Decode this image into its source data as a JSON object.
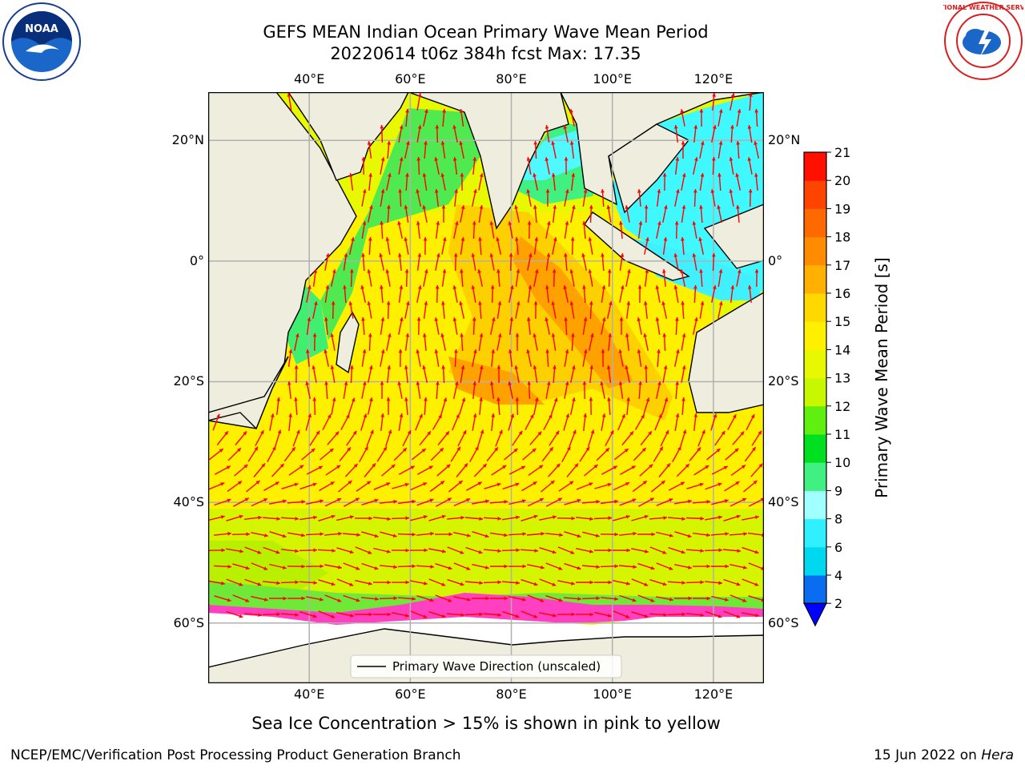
{
  "header": {
    "title_line1": "GEFS MEAN Indian Ocean Primary Wave Mean Period",
    "title_line2": "20220614 t06z 384h fcst   Max: 17.35"
  },
  "logos": {
    "left": {
      "icon": "noaa-logo-icon",
      "text": "NOAA"
    },
    "right": {
      "icon": "nws-logo-icon",
      "text": "NATIONAL WEATHER SERVICE"
    }
  },
  "map": {
    "lon_ticks": [
      "40°E",
      "60°E",
      "80°E",
      "100°E",
      "120°E"
    ],
    "lon_values": [
      40,
      60,
      80,
      100,
      120
    ],
    "lat_ticks": [
      "20°N",
      "0°",
      "20°S",
      "40°S",
      "60°S"
    ],
    "lat_values": [
      20,
      0,
      -20,
      -40,
      -60
    ],
    "extent": {
      "lon_min": 20,
      "lon_max": 130,
      "lat_min": -70,
      "lat_max": 28
    },
    "legend_label": "Primary Wave Direction (unscaled)",
    "colors": {
      "land": "#efedde",
      "ice": "#ffffff",
      "arrow": "#ff0000",
      "grid": "#b0b0b0"
    }
  },
  "colorbar": {
    "label": "Primary Wave Mean Period [s]",
    "ticks": [
      "2",
      "4",
      "6",
      "8",
      "9",
      "10",
      "11",
      "12",
      "13",
      "14",
      "15",
      "16",
      "17",
      "18",
      "19",
      "20",
      "21"
    ],
    "colors": [
      "#0a6cf0",
      "#00d8f0",
      "#30f0ff",
      "#a0ffff",
      "#40f080",
      "#00e020",
      "#60f010",
      "#c8f800",
      "#e8f800",
      "#fff000",
      "#ffd800",
      "#ffb000",
      "#ff8c00",
      "#ff6a00",
      "#ff4400",
      "#ff1000"
    ],
    "under_color": "#0000ff"
  },
  "notes": {
    "sea_ice": "Sea Ice Concentration > 15% is shown in pink to yellow"
  },
  "footer": {
    "left": "NCEP/EMC/Verification Post Processing Product Generation Branch",
    "right_prefix": "15 Jun 2022 on ",
    "right_host": "Hera"
  }
}
